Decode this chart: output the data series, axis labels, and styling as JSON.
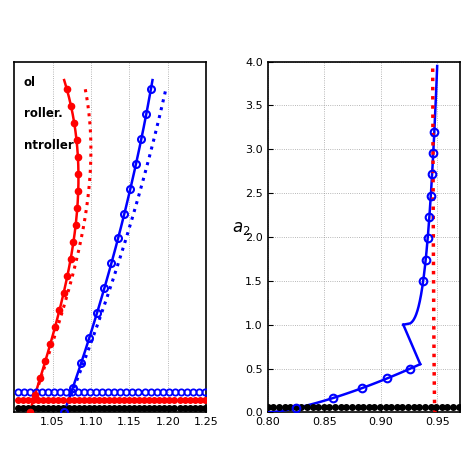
{
  "left_xlim": [
    1.0,
    1.25
  ],
  "left_xticks": [
    1.05,
    1.1,
    1.15,
    1.2,
    1.25
  ],
  "left_ylim": [
    0,
    3.8
  ],
  "right_xlim": [
    0.8,
    0.97
  ],
  "right_xticks": [
    0.8,
    0.85,
    0.9,
    0.95
  ],
  "right_ylim": [
    0,
    4
  ],
  "right_yticks": [
    0,
    0.5,
    1.0,
    1.5,
    2.0,
    2.5,
    3.0,
    3.5,
    4.0
  ],
  "legend_texts": [
    "ol",
    "roller.",
    "ntroller"
  ],
  "background_color": "#ffffff",
  "black_color": "#000000",
  "red_color": "#ff0000",
  "blue_color": "#0000ff",
  "grid_color": "#888888"
}
